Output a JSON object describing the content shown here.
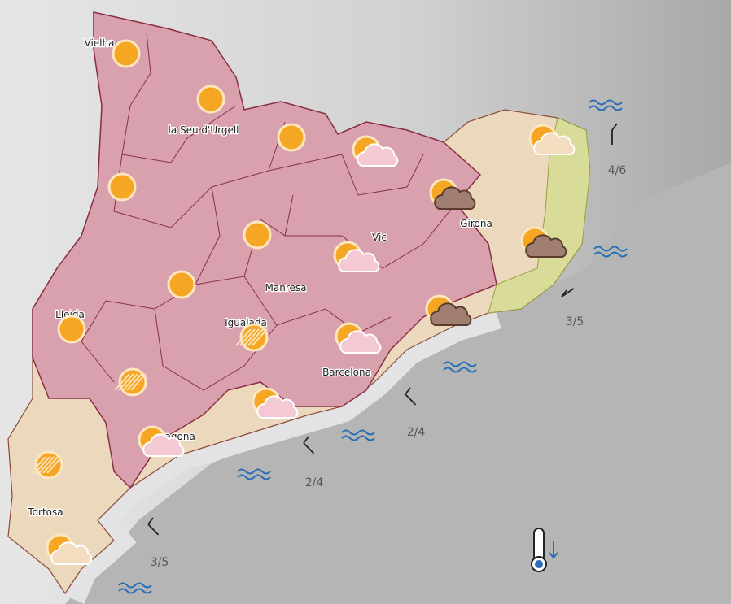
{
  "cities": [
    "Vielha",
    "la Seu d'Urgell",
    "Vic",
    "Girona",
    "Manresa",
    "Lleida",
    "Igualada",
    "Barcelona",
    "Tarragona",
    "Tortosa"
  ],
  "wind": [
    "4/6",
    "3/5",
    "2/4",
    "2/4",
    "3/5"
  ]
}
